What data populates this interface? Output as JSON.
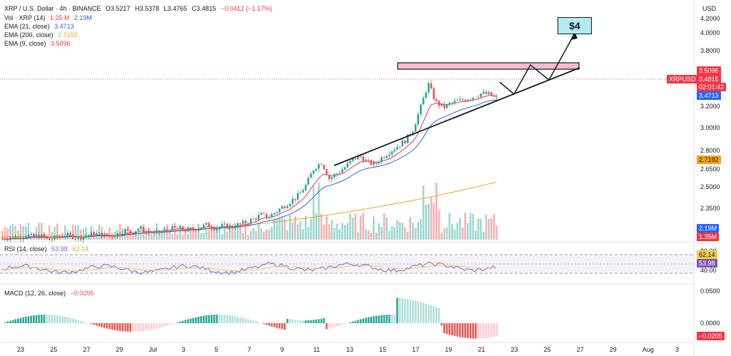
{
  "header": {
    "symbol_line": "XRP / U.S. Dollar · 4h · BINANCE",
    "ohlc": {
      "o_label": "O",
      "o": "3.5217",
      "h_label": "H",
      "h": "3.5378",
      "l_label": "L",
      "l": "3.4765",
      "c_label": "C",
      "c": "3.4815",
      "change": "−0.0412 (−1.17%)"
    },
    "vol_label": "Vol · XRP (14)",
    "vol_1": "1.35 M",
    "vol_2": "2.19M",
    "ema21_label": "EMA (21, close)",
    "ema21_value": "3.4713",
    "ema200_label": "EMA (200, close)",
    "ema200_value": "2.7192",
    "ema9_label": "EMA (9, close)",
    "ema9_value": "3.5096"
  },
  "price_axis": {
    "currency": "USD",
    "ticks": [
      "4.2000",
      "4.0000",
      "3.8000",
      "3.5096",
      "3.2000",
      "3.0000",
      "2.8000",
      "2.6500",
      "2.5000",
      "2.3500"
    ],
    "symbol_tag": "XRPUSD",
    "tag_ema9": "3.5096",
    "tag_last": "3.4815",
    "tag_countdown": "02:01:42",
    "tag_ema21": "3.4713",
    "tag_ema200": "2.7192",
    "tag_vol_ma": "2.19M",
    "tag_vol": "1.35M"
  },
  "annotation": {
    "target_label": "$4"
  },
  "rsi": {
    "label": "RSI (14, close)",
    "value_1": "53.98",
    "value_2": "62.14",
    "ticks": [
      "80.00",
      "40.00"
    ],
    "tag_1": "62.14",
    "tag_2": "53.98"
  },
  "macd": {
    "label": "MACD (12, 26, close)",
    "value": "−0.0205",
    "ticks": [
      "0.0500",
      "0.0000"
    ],
    "tag": "−0.0205"
  },
  "time_axis": {
    "ticks": [
      "23",
      "25",
      "27",
      "29",
      "Jul",
      "3",
      "5",
      "7",
      "9",
      "11",
      "13",
      "15",
      "17",
      "19",
      "21",
      "23",
      "25",
      "27",
      "29",
      "Aug",
      "3"
    ]
  },
  "colors": {
    "up": "#26a69a",
    "down": "#ef5350",
    "ema9": "#f23645",
    "ema21": "#2962ff",
    "ema200": "#f7a21b",
    "rsi": "#7e57c2",
    "rsi_ma": "#f7c948",
    "resistance": "#f8bbd0"
  },
  "chart_data": {
    "type": "candlestick",
    "title": "XRP / U.S. Dollar · 4h · BINANCE",
    "ylim": [
      2.2,
      4.35
    ],
    "x": [
      "23",
      "25",
      "27",
      "29",
      "Jul",
      "3",
      "5",
      "7",
      "9",
      "11",
      "13",
      "15",
      "17",
      "19",
      "21",
      "23",
      "25",
      "27",
      "29",
      "Aug",
      "3"
    ],
    "series": [
      {
        "name": "EMA (9, close)",
        "last": 3.5096
      },
      {
        "name": "EMA (21, close)",
        "last": 3.4713
      },
      {
        "name": "EMA (200, close)",
        "last": 2.7192
      }
    ],
    "close_path": [
      2.2,
      2.22,
      2.21,
      2.24,
      2.22,
      2.23,
      2.19,
      2.21,
      2.24,
      2.23,
      2.21,
      2.23,
      2.25,
      2.24,
      2.22,
      2.24,
      2.28,
      2.26,
      2.3,
      2.27,
      2.25,
      2.27,
      2.29,
      2.3,
      2.28,
      2.29,
      2.31,
      2.33,
      2.3,
      2.32,
      2.31,
      2.33,
      2.35,
      2.38,
      2.42,
      2.4,
      2.45,
      2.5,
      2.55,
      2.6,
      2.7,
      2.85,
      2.9,
      2.75,
      2.8,
      2.85,
      2.92,
      2.96,
      2.9,
      2.88,
      2.95,
      3.0,
      3.05,
      3.1,
      3.2,
      3.4,
      3.62,
      3.45,
      3.4,
      3.44,
      3.46,
      3.48,
      3.5,
      3.53,
      3.52,
      3.48
    ],
    "rsi_ylim": [
      30,
      90
    ],
    "macd_ylim": [
      -0.03,
      0.06
    ]
  }
}
